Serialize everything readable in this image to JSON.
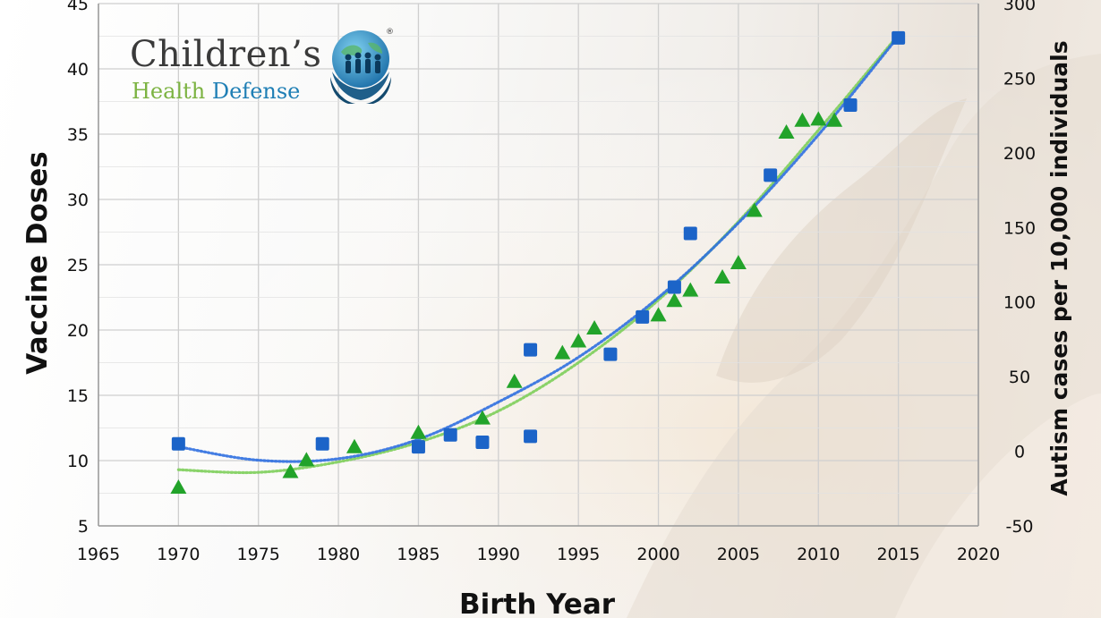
{
  "logo": {
    "line1": "Children’s",
    "word_health": "Health",
    "word_defense": "Defense",
    "registered_mark": "®",
    "icon": "globe-with-children-in-hands-icon",
    "colors": {
      "gray": "#3a3a3a",
      "green": "#7cb342",
      "blue": "#1f7fb5"
    }
  },
  "chart_data": {
    "type": "scatter",
    "xlabel": "Birth Year",
    "ylabel_left": "Vaccine Doses",
    "ylabel_right": "Autism cases per 10,000 individuals",
    "x_ticks": [
      "1965",
      "1970",
      "1975",
      "1980",
      "1985",
      "1990",
      "1995",
      "2000",
      "2005",
      "2010",
      "2015",
      "2020"
    ],
    "y_left_ticks": [
      "5",
      "10",
      "15",
      "20",
      "25",
      "30",
      "35",
      "40",
      "45"
    ],
    "y_right_ticks": [
      "-50",
      "0",
      "50",
      "100",
      "150",
      "200",
      "250",
      "300"
    ],
    "xlim": [
      1965,
      2020
    ],
    "ylim_left": [
      5,
      45
    ],
    "ylim_right": [
      -50,
      300
    ],
    "grid": true,
    "series": [
      {
        "axis": "left",
        "marker": "triangle",
        "color": "#22a32a",
        "trend_color": "#7dce5a",
        "points": [
          [
            1970,
            7.9
          ],
          [
            1977,
            9.1
          ],
          [
            1978,
            10.0
          ],
          [
            1981,
            11.0
          ],
          [
            1985,
            12.1
          ],
          [
            1989,
            13.2
          ],
          [
            1991,
            16.0
          ],
          [
            1994,
            18.2
          ],
          [
            1995,
            19.1
          ],
          [
            1996,
            20.1
          ],
          [
            2000,
            21.1
          ],
          [
            2001,
            22.2
          ],
          [
            2002,
            23.0
          ],
          [
            2004,
            24.0
          ],
          [
            2005,
            25.1
          ],
          [
            2006,
            29.1
          ],
          [
            2008,
            35.1
          ],
          [
            2009,
            36.0
          ],
          [
            2010,
            36.1
          ],
          [
            2011,
            36.0
          ]
        ],
        "trend": [
          [
            1970,
            9.3
          ],
          [
            1975,
            9.1
          ],
          [
            1980,
            9.9
          ],
          [
            1985,
            11.4
          ],
          [
            1990,
            13.8
          ],
          [
            1995,
            17.5
          ],
          [
            2000,
            22.3
          ],
          [
            2005,
            28.3
          ],
          [
            2010,
            35.3
          ],
          [
            2015,
            42.6
          ]
        ]
      },
      {
        "axis": "right",
        "marker": "square",
        "color": "#1c64c8",
        "trend_color": "#2f6fe0",
        "points": [
          [
            1970,
            5
          ],
          [
            1979,
            5
          ],
          [
            1985,
            3
          ],
          [
            1987,
            11
          ],
          [
            1989,
            6
          ],
          [
            1992,
            10
          ],
          [
            1992,
            68
          ],
          [
            1997,
            65
          ],
          [
            1999,
            90
          ],
          [
            2001,
            110
          ],
          [
            2002,
            146
          ],
          [
            2007,
            185
          ],
          [
            2012,
            232
          ],
          [
            2015,
            277
          ]
        ],
        "trend": [
          [
            1970,
            3
          ],
          [
            1975,
            -6
          ],
          [
            1980,
            -5
          ],
          [
            1985,
            8
          ],
          [
            1990,
            33
          ],
          [
            1995,
            63
          ],
          [
            2000,
            103
          ],
          [
            2005,
            153
          ],
          [
            2010,
            212
          ],
          [
            2015,
            278
          ]
        ]
      }
    ]
  }
}
